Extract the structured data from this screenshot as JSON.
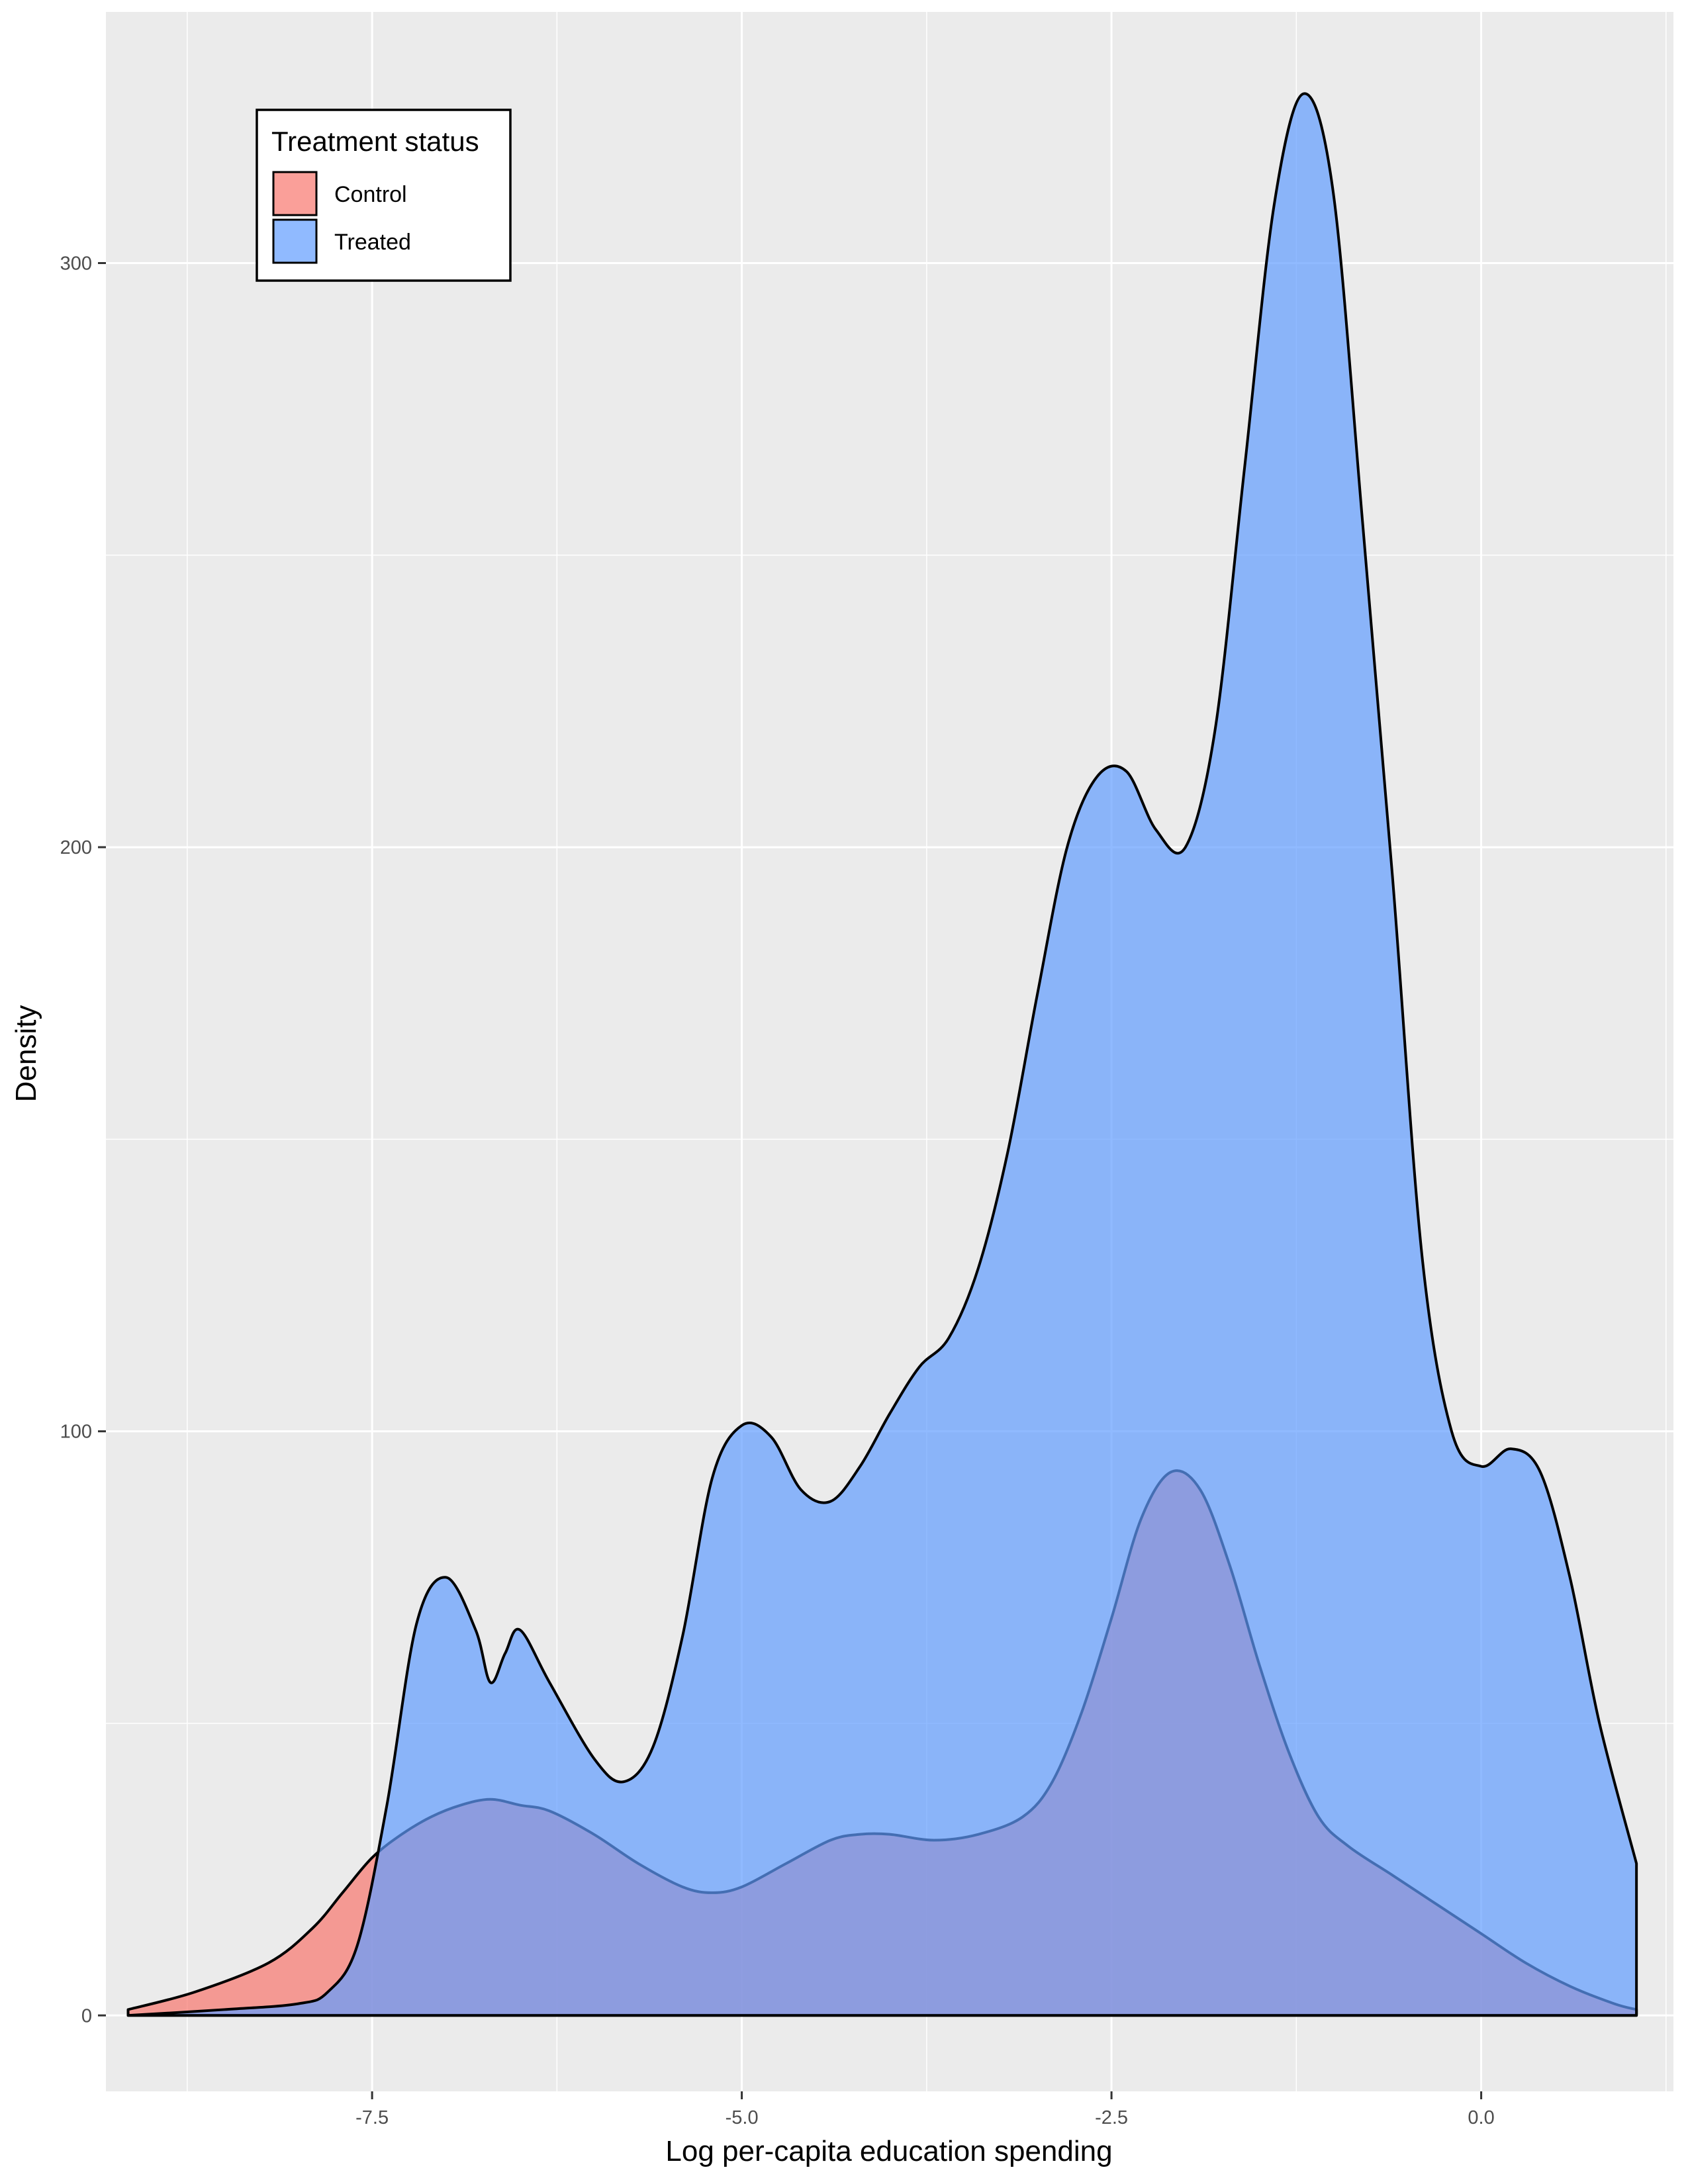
{
  "chart_data": {
    "type": "area",
    "xlabel": "Log per-capita education spending",
    "ylabel": "Density",
    "xlim": [
      -9.3,
      1.3
    ],
    "ylim": [
      -13,
      343
    ],
    "x_ticks": [
      -7.5,
      -5.0,
      -2.5,
      0.0
    ],
    "x_tick_labels": [
      "-7.5",
      "-5.0",
      "-2.5",
      "0.0"
    ],
    "y_ticks": [
      0,
      100,
      200,
      300
    ],
    "y_tick_labels": [
      "0",
      "100",
      "200",
      "300"
    ],
    "grid": true,
    "legend": {
      "title": "Treatment status",
      "placement": "top-left",
      "entries": [
        "Control",
        "Treated"
      ]
    },
    "series": [
      {
        "name": "Control",
        "fill": "#F8766D",
        "x": [
          -9.15,
          -8.7,
          -8.2,
          -7.9,
          -7.7,
          -7.5,
          -7.3,
          -7.1,
          -6.9,
          -6.7,
          -6.5,
          -6.3,
          -6.0,
          -5.7,
          -5.4,
          -5.2,
          -5.0,
          -4.7,
          -4.4,
          -4.2,
          -4.0,
          -3.7,
          -3.4,
          -3.1,
          -2.9,
          -2.7,
          -2.5,
          -2.3,
          -2.1,
          -1.9,
          -1.7,
          -1.5,
          -1.3,
          -1.1,
          -0.9,
          -0.6,
          -0.3,
          0.0,
          0.3,
          0.6,
          0.9,
          1.05
        ],
        "y": [
          1,
          4,
          9,
          15,
          21,
          27,
          31,
          34,
          36,
          37,
          36,
          35,
          31,
          26,
          22,
          21,
          22,
          26,
          30,
          31,
          31,
          30,
          31,
          34,
          40,
          52,
          68,
          85,
          93,
          90,
          77,
          60,
          45,
          34,
          29,
          24,
          19,
          14,
          9,
          5,
          2,
          1
        ]
      },
      {
        "name": "Treated",
        "fill": "#619CFF",
        "x": [
          -9.15,
          -8.5,
          -8.0,
          -7.8,
          -7.6,
          -7.4,
          -7.2,
          -7.0,
          -6.8,
          -6.7,
          -6.6,
          -6.5,
          -6.3,
          -6.0,
          -5.8,
          -5.6,
          -5.4,
          -5.2,
          -5.0,
          -4.8,
          -4.6,
          -4.4,
          -4.2,
          -4.0,
          -3.8,
          -3.6,
          -3.4,
          -3.2,
          -3.0,
          -2.8,
          -2.6,
          -2.4,
          -2.2,
          -2.0,
          -1.8,
          -1.6,
          -1.4,
          -1.2,
          -1.0,
          -0.8,
          -0.6,
          -0.4,
          -0.2,
          0.0,
          0.2,
          0.4,
          0.6,
          0.8,
          1.05
        ],
        "y": [
          0,
          1,
          2,
          4,
          12,
          36,
          67,
          75,
          66,
          57,
          62,
          66,
          57,
          44,
          40,
          46,
          65,
          92,
          101,
          99,
          90,
          88,
          94,
          103,
          111,
          116,
          128,
          148,
          175,
          200,
          212,
          213,
          203,
          200,
          220,
          265,
          310,
          329,
          312,
          255,
          195,
          130,
          100,
          94,
          97,
          93,
          75,
          50,
          26
        ]
      }
    ]
  }
}
